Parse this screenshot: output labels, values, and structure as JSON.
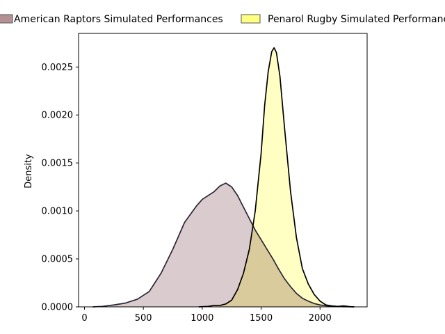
{
  "chart_data": {
    "type": "area",
    "ylabel": "Density",
    "xlabel": "",
    "xlim": [
      -50,
      2400
    ],
    "ylim": [
      0,
      0.00285
    ],
    "xticks": [
      0,
      500,
      1000,
      1500,
      2000
    ],
    "yticks": [
      0.0,
      0.0005,
      0.001,
      0.0015,
      0.002,
      0.0025
    ],
    "ytick_labels": [
      "0.0000",
      "0.0005",
      "0.0010",
      "0.0015",
      "0.0020",
      "0.0025"
    ],
    "grid": false,
    "legend_position": "top",
    "series": [
      {
        "name": "American Raptors Simulated Performances",
        "fill": "#d8c8cb",
        "legend_swatch": "#b49293",
        "stroke": "#2a2535",
        "x": [
          70,
          150,
          250,
          350,
          450,
          550,
          650,
          750,
          850,
          950,
          1000,
          1050,
          1100,
          1150,
          1200,
          1250,
          1300,
          1350,
          1400,
          1450,
          1500,
          1550,
          1600,
          1650,
          1700,
          1750,
          1800,
          1850,
          1900,
          1950,
          2000,
          2050,
          2100,
          2150,
          2200,
          2290
        ],
        "y": [
          0.0,
          5e-06,
          2e-05,
          4e-05,
          8e-05,
          0.00016,
          0.00035,
          0.0006,
          0.00088,
          0.00105,
          0.00112,
          0.00116,
          0.0012,
          0.00126,
          0.00129,
          0.00125,
          0.00116,
          0.00104,
          0.00092,
          0.0008,
          0.0007,
          0.0006,
          0.0005,
          0.00039,
          0.00029,
          0.00021,
          0.00014,
          9e-05,
          6e-05,
          3.5e-05,
          2e-05,
          1.2e-05,
          7e-06,
          4e-06,
          2e-06,
          0.0
        ]
      },
      {
        "name": "Penarol Rugby Simulated Performances",
        "fill": "#ffffc0",
        "legend_swatch": "#ffff80",
        "stroke": "#000000",
        "x": [
          970,
          1050,
          1100,
          1150,
          1200,
          1250,
          1300,
          1350,
          1400,
          1450,
          1500,
          1530,
          1560,
          1590,
          1610,
          1630,
          1660,
          1700,
          1750,
          1800,
          1850,
          1900,
          1950,
          2000,
          2050,
          2100,
          2150,
          2200,
          2250,
          2290
        ],
        "y": [
          0.0,
          5e-06,
          1.5e-05,
          1.5e-05,
          3e-05,
          7e-05,
          0.00018,
          0.00035,
          0.0006,
          0.001,
          0.0016,
          0.0021,
          0.00245,
          0.00266,
          0.0027,
          0.00265,
          0.0024,
          0.00185,
          0.0012,
          0.00072,
          0.0004,
          0.00024,
          0.00013,
          6e-05,
          2e-05,
          1e-05,
          5e-06,
          1e-05,
          3e-06,
          0.0
        ]
      }
    ]
  }
}
